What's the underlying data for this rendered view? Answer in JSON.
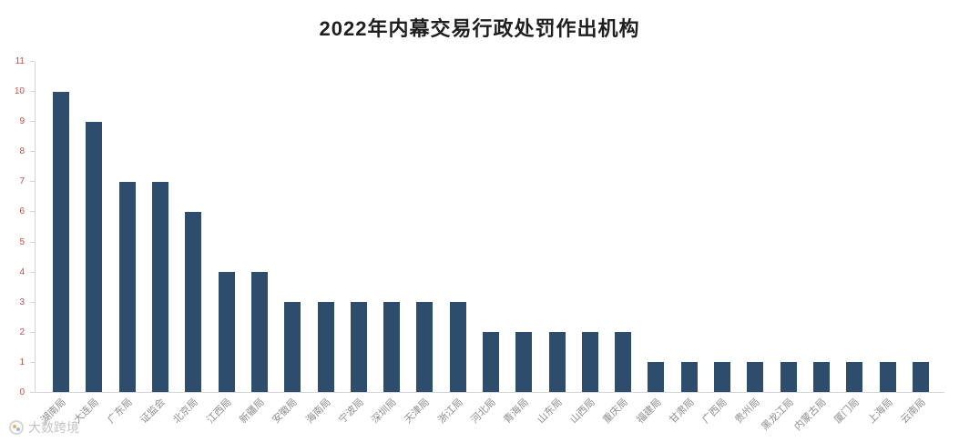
{
  "title": "2022年内幕交易行政处罚作出机构",
  "watermark": {
    "text": "大数跨境"
  },
  "chart_data": {
    "type": "bar",
    "title": "2022年内幕交易行政处罚作出机构",
    "categories": [
      "湖南局",
      "大连局",
      "广东局",
      "证监会",
      "北京局",
      "江西局",
      "新疆局",
      "安徽局",
      "海南局",
      "宁波局",
      "深圳局",
      "天津局",
      "浙江局",
      "河北局",
      "青海局",
      "山东局",
      "山西局",
      "重庆局",
      "福建局",
      "甘肃局",
      "广西局",
      "贵州局",
      "黑龙江局",
      "内蒙古局",
      "厦门局",
      "上海局",
      "云南局"
    ],
    "values": [
      10,
      9,
      7,
      7,
      6,
      4,
      4,
      3,
      3,
      3,
      3,
      3,
      3,
      2,
      2,
      2,
      2,
      2,
      1,
      1,
      1,
      1,
      1,
      1,
      1,
      1,
      1
    ],
    "xlabel": "",
    "ylabel": "",
    "ylim": [
      0,
      11
    ],
    "ytick_step": 1,
    "grid": false,
    "legend": false,
    "x_label_rotation_deg": 45,
    "colors": {
      "bar": "#2e4d6c",
      "y_tick_label": "#c0504d",
      "x_tick_label": "#8f8f8f",
      "axis_line": "#d4d4d4",
      "title": "#1f1f1f",
      "watermark": "#c4c4c4"
    }
  }
}
